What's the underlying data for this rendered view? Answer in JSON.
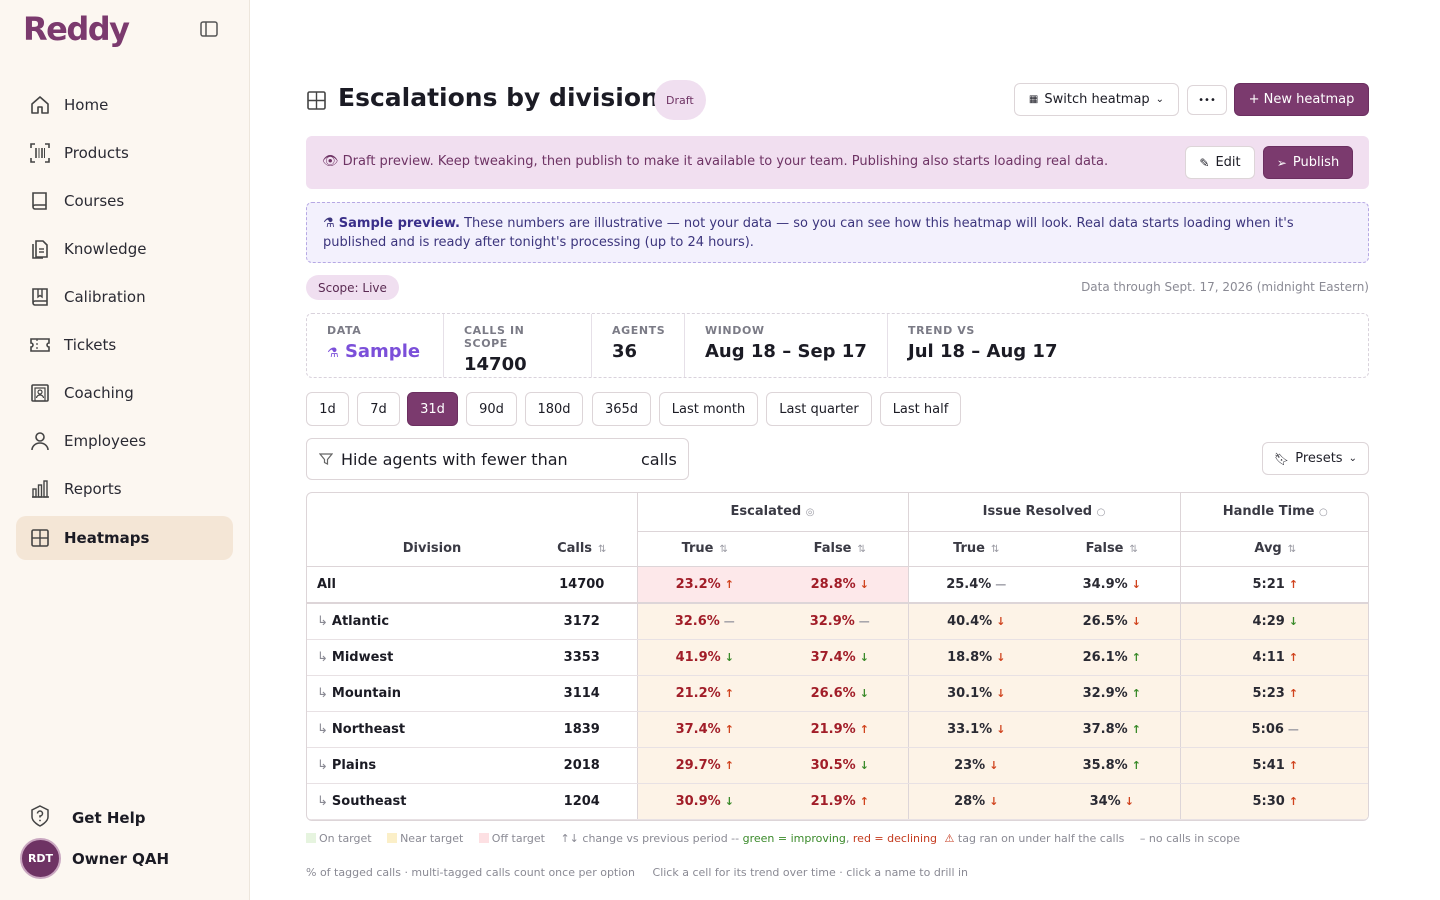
{
  "app": {
    "logo": "Reddy"
  },
  "sidebar": {
    "items": [
      {
        "label": "Home",
        "icon": "home-icon"
      },
      {
        "label": "Products",
        "icon": "barcode-icon"
      },
      {
        "label": "Courses",
        "icon": "book-icon"
      },
      {
        "label": "Knowledge",
        "icon": "document-icon"
      },
      {
        "label": "Calibration",
        "icon": "bookmark-book-icon"
      },
      {
        "label": "Tickets",
        "icon": "ticket-icon"
      },
      {
        "label": "Coaching",
        "icon": "coaching-icon"
      },
      {
        "label": "Employees",
        "icon": "person-icon"
      },
      {
        "label": "Reports",
        "icon": "bar-chart-icon"
      },
      {
        "label": "Heatmaps",
        "icon": "grid-icon",
        "active": true
      }
    ],
    "help": "Get Help",
    "user": {
      "initials": "RDT",
      "name": "Owner QAH"
    }
  },
  "header": {
    "title": "Escalations by division",
    "badge": "Draft",
    "switch_label": "Switch heatmap",
    "more_label": "•••",
    "new_label": "+ New heatmap"
  },
  "draft_banner": {
    "text": "Draft preview. Keep tweaking, then publish to make it available to your team. Publishing also starts loading real data.",
    "edit": "Edit",
    "publish": "Publish"
  },
  "sample_banner": {
    "bold": "Sample preview.",
    "text": " These numbers are illustrative — not your data — so you can see how this heatmap will look. Real data starts loading when it's published and is ready after tonight's processing (up to 24 hours)."
  },
  "scope": "Scope: Live",
  "data_through": "Data through Sept. 17, 2026 (midnight Eastern)",
  "stats": [
    {
      "key": "DATA",
      "value": "Sample"
    },
    {
      "key": "CALLS IN SCOPE",
      "value": "14700"
    },
    {
      "key": "AGENTS",
      "value": "36"
    },
    {
      "key": "WINDOW",
      "value": "Aug 18 – Sep 17"
    },
    {
      "key": "TREND VS",
      "value": "Jul 18 – Aug 17"
    }
  ],
  "ranges": [
    "1d",
    "7d",
    "31d",
    "90d",
    "180d",
    "365d",
    "Last month",
    "Last quarter",
    "Last half"
  ],
  "active_range": "31d",
  "filter": {
    "prefix": "Hide agents with fewer than",
    "suffix": "calls",
    "value": ""
  },
  "presets": "Presets",
  "table": {
    "groups": [
      "Escalated",
      "Issue Resolved",
      "Handle Time"
    ],
    "headers": {
      "division": "Division",
      "calls": "Calls",
      "true": "True",
      "false": "False",
      "avg": "Avg"
    },
    "all": {
      "name": "All",
      "calls": "14700",
      "esc_true": "23.2%",
      "esc_false": "28.8%",
      "res_true": "25.4%",
      "res_false": "34.9%",
      "avg": "5:21"
    },
    "rows": [
      {
        "name": "Atlantic",
        "calls": "3172",
        "esc_true": "32.6%",
        "esc_false": "32.9%",
        "res_true": "40.4%",
        "res_false": "26.5%",
        "avg": "4:29"
      },
      {
        "name": "Midwest",
        "calls": "3353",
        "esc_true": "41.9%",
        "esc_false": "37.4%",
        "res_true": "18.8%",
        "res_false": "26.1%",
        "avg": "4:11"
      },
      {
        "name": "Mountain",
        "calls": "3114",
        "esc_true": "21.2%",
        "esc_false": "26.6%",
        "res_true": "30.1%",
        "res_false": "32.9%",
        "avg": "5:23"
      },
      {
        "name": "Northeast",
        "calls": "1839",
        "esc_true": "37.4%",
        "esc_false": "21.9%",
        "res_true": "33.1%",
        "res_false": "37.8%",
        "avg": "5:06"
      },
      {
        "name": "Plains",
        "calls": "2018",
        "esc_true": "29.7%",
        "esc_false": "30.5%",
        "res_true": "23%",
        "res_false": "35.8%",
        "avg": "5:41"
      },
      {
        "name": "Southeast",
        "calls": "1204",
        "esc_true": "30.9%",
        "esc_false": "21.9%",
        "res_true": "28%",
        "res_false": "34%",
        "avg": "5:30"
      }
    ]
  },
  "legend": {
    "on": "On target",
    "near": "Near target",
    "off": "Off target",
    "change": "↑↓ change vs previous period --",
    "green": "green = improving",
    "red": "red = declining",
    "tag": "tag ran on under half the calls",
    "none": "– no calls in scope"
  },
  "footnote": {
    "a": "% of tagged calls · multi-tagged calls count once per option",
    "b": "Click a cell for its trend over time · click a name to drill in"
  }
}
